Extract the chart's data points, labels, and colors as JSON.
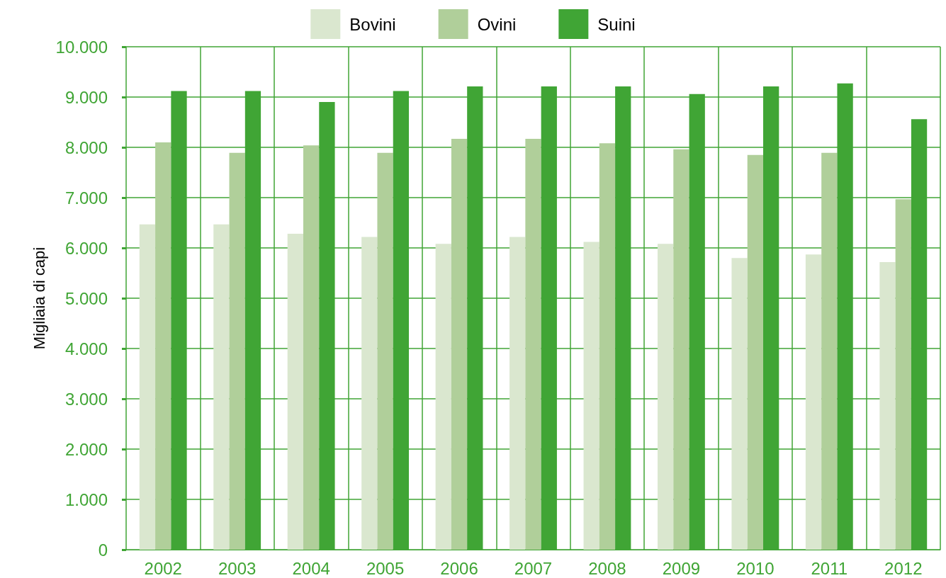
{
  "chart_data": {
    "type": "bar",
    "ylabel": "Migliaia di capi",
    "categories": [
      "2002",
      "2003",
      "2004",
      "2005",
      "2006",
      "2007",
      "2008",
      "2009",
      "2010",
      "2011",
      "2012"
    ],
    "series": [
      {
        "name": "Bovini",
        "color": "#dae7cf",
        "values": [
          6470,
          6470,
          6280,
          6220,
          6080,
          6220,
          6120,
          6080,
          5800,
          5870,
          5720
        ]
      },
      {
        "name": "Ovini",
        "color": "#b0cf9a",
        "values": [
          8100,
          7890,
          8040,
          7890,
          8170,
          8170,
          8080,
          7960,
          7850,
          7890,
          6970
        ]
      },
      {
        "name": "Suini",
        "color": "#40a535",
        "values": [
          9120,
          9120,
          8900,
          9120,
          9210,
          9210,
          9210,
          9060,
          9210,
          9270,
          8560
        ]
      }
    ],
    "ylim": [
      0,
      10000
    ],
    "yticks": [
      0,
      {
        "value": 1000,
        "label": "1.000"
      },
      {
        "value": 2000,
        "label": "2.000"
      },
      {
        "value": 3000,
        "label": "3.000"
      },
      {
        "value": 4000,
        "label": "4.000"
      },
      {
        "value": 5000,
        "label": "5.000"
      },
      {
        "value": 6000,
        "label": "6.000"
      },
      {
        "value": 7000,
        "label": "7.000"
      },
      {
        "value": 8000,
        "label": "8.000"
      },
      {
        "value": 9000,
        "label": "9.000"
      },
      {
        "value": 10000,
        "label": "10.000"
      }
    ],
    "grid": true,
    "legend": "top"
  }
}
